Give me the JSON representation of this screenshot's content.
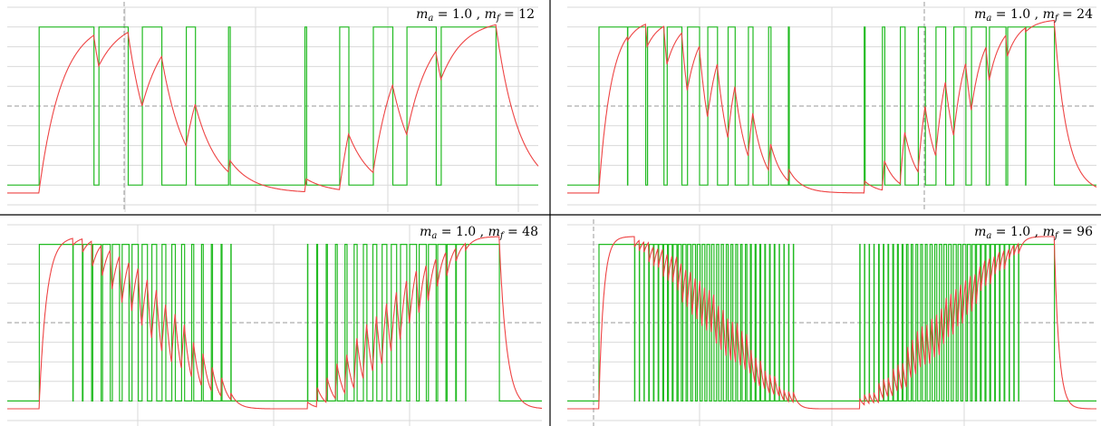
{
  "chart_data": [
    {
      "type": "line",
      "title": "m_a = 1.0 , m_f = 12",
      "title_parts": {
        "ma_sym": "m",
        "ma_sub": "a",
        "ma_val": " = 1.0 , ",
        "mf_sym": "m",
        "mf_sub": "f",
        "mf_val": " = 12"
      },
      "ma": 1.0,
      "mf": 12,
      "series": [
        {
          "name": "",
          "kind": "pwm",
          "color": "#22bb22"
        },
        {
          "name": "",
          "kind": "filtered",
          "color": "#ee4444"
        }
      ],
      "ylim": [
        -1.25,
        1.25
      ],
      "pwm_levels": [
        -1,
        1
      ],
      "grid": true,
      "legend": "none"
    },
    {
      "type": "line",
      "title": "m_a = 1.0 , m_f = 24",
      "title_parts": {
        "ma_sym": "m",
        "ma_sub": "a",
        "ma_val": " = 1.0 , ",
        "mf_sym": "m",
        "mf_sub": "f",
        "mf_val": " = 24"
      },
      "ma": 1.0,
      "mf": 24,
      "series": [
        {
          "name": "",
          "kind": "pwm",
          "color": "#22bb22"
        },
        {
          "name": "",
          "kind": "filtered",
          "color": "#ee4444"
        }
      ],
      "ylim": [
        -1.25,
        1.25
      ],
      "pwm_levels": [
        -1,
        1
      ],
      "grid": true,
      "legend": "none"
    },
    {
      "type": "line",
      "title": "m_a = 1.0 , m_f = 48",
      "title_parts": {
        "ma_sym": "m",
        "ma_sub": "a",
        "ma_val": " = 1.0 , ",
        "mf_sym": "m",
        "mf_sub": "f",
        "mf_val": " = 48"
      },
      "ma": 1.0,
      "mf": 48,
      "series": [
        {
          "name": "",
          "kind": "pwm",
          "color": "#22bb22"
        },
        {
          "name": "",
          "kind": "filtered",
          "color": "#ee4444"
        }
      ],
      "ylim": [
        -1.25,
        1.25
      ],
      "pwm_levels": [
        -1,
        1
      ],
      "grid": true,
      "legend": "none"
    },
    {
      "type": "line",
      "title": "m_a = 1.0 , m_f = 96",
      "title_parts": {
        "ma_sym": "m",
        "ma_sub": "a",
        "ma_val": " = 1.0 , ",
        "mf_sym": "m",
        "mf_sub": "f",
        "mf_val": " = 96"
      },
      "ma": 1.0,
      "mf": 96,
      "series": [
        {
          "name": "",
          "kind": "pwm",
          "color": "#22bb22"
        },
        {
          "name": "",
          "kind": "filtered",
          "color": "#ee4444"
        }
      ],
      "ylim": [
        -1.25,
        1.25
      ],
      "pwm_levels": [
        -1,
        1
      ],
      "grid": true,
      "legend": "none"
    }
  ]
}
